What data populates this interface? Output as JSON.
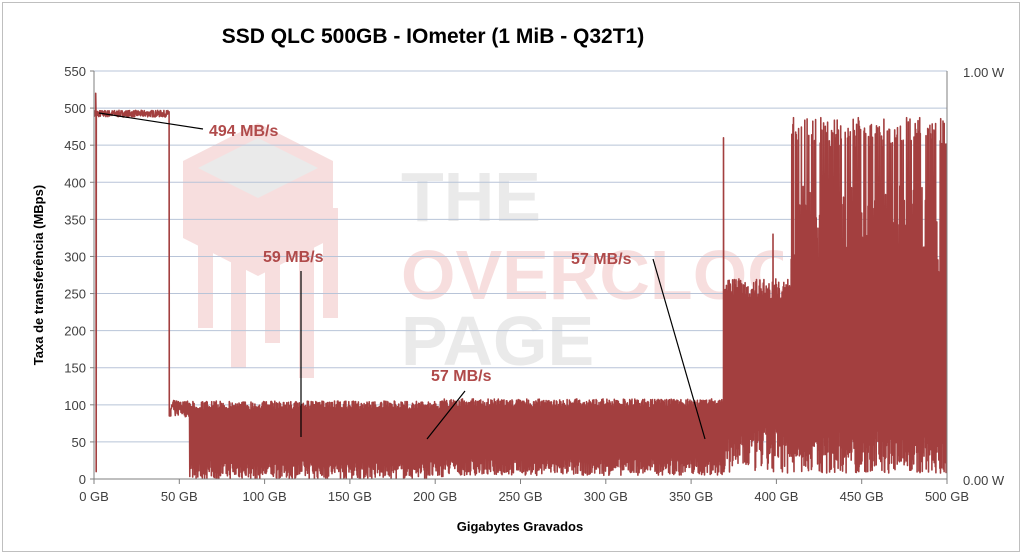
{
  "chart_data": {
    "type": "line",
    "title": "SSD QLC 500GB - IOmeter (1 MiB - Q32T1)",
    "xlabel": "Gigabytes Gravados",
    "ylabel": "Taxa de transferência (MBps)",
    "xlim": [
      0,
      500
    ],
    "ylim": [
      0,
      550
    ],
    "y2lim": [
      0,
      1
    ],
    "x_tick_labels": [
      "0 GB",
      "50 GB",
      "100 GB",
      "150 GB",
      "200 GB",
      "250 GB",
      "300 GB",
      "350 GB",
      "400 GB",
      "450 GB",
      "500 GB"
    ],
    "y_tick_labels": [
      "0",
      "50",
      "100",
      "150",
      "200",
      "250",
      "300",
      "350",
      "400",
      "450",
      "500",
      "550"
    ],
    "y2_tick_labels": [
      "0.00 W",
      "1.00 W"
    ],
    "grid": true,
    "series": [
      {
        "color": "#a33f3f",
        "segments": [
          {
            "x_start": 0,
            "x_end": 44,
            "low": 488,
            "high": 497,
            "pattern": "stable"
          },
          {
            "x_start": 44,
            "x_end": 45,
            "low": 85,
            "high": 495,
            "pattern": "drop"
          },
          {
            "x_start": 45,
            "x_end": 56,
            "low": 84,
            "high": 106,
            "pattern": "stable"
          },
          {
            "x_start": 56,
            "x_end": 205,
            "low": 0,
            "high": 105,
            "pattern": "oscillating"
          },
          {
            "x_start": 205,
            "x_end": 370,
            "low": 5,
            "high": 108,
            "pattern": "oscillating"
          },
          {
            "x_start": 370,
            "x_end": 408,
            "low": 8,
            "high": 270,
            "pattern": "oscillating"
          },
          {
            "x_start": 408,
            "x_end": 500,
            "low": 8,
            "high": 487,
            "pattern": "spiky"
          }
        ],
        "spikes": [
          {
            "x": 1,
            "y": 520
          },
          {
            "x": 369,
            "y": 460
          },
          {
            "x": 398,
            "y": 330
          },
          {
            "x": 410,
            "y": 487
          },
          {
            "x": 426,
            "y": 487
          },
          {
            "x": 448,
            "y": 487
          },
          {
            "x": 463,
            "y": 485
          },
          {
            "x": 484,
            "y": 487
          },
          {
            "x": 498,
            "y": 460
          }
        ]
      }
    ],
    "annotations": [
      {
        "text": "494 MB/s",
        "x": 5,
        "y": 494
      },
      {
        "text": "59 MB/s",
        "x": 120,
        "y": 59
      },
      {
        "text": "57 MB/s",
        "x": 195,
        "y": 57
      },
      {
        "text": "57 MB/s",
        "x": 358,
        "y": 57
      }
    ],
    "watermark": {
      "lines": [
        "THE",
        "OVERCLOCK",
        "PAGE"
      ]
    }
  }
}
